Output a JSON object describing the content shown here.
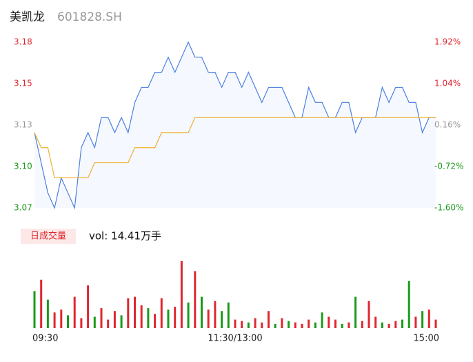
{
  "header": {
    "name": "美凯龙",
    "code": "601828.SH"
  },
  "chart_data": [
    {
      "type": "line",
      "x": [
        0,
        4,
        8,
        12,
        16,
        20,
        24,
        28,
        32,
        36,
        40,
        44,
        48,
        52,
        56,
        60,
        64,
        68,
        72,
        76,
        80,
        84,
        88,
        92,
        96,
        100,
        104,
        108,
        112,
        116,
        120,
        124,
        128,
        132,
        136,
        140,
        144,
        148,
        152,
        156,
        160,
        164,
        168,
        172,
        176,
        180,
        184,
        188,
        192,
        196,
        200,
        204,
        208,
        212,
        216,
        220,
        224,
        228,
        232,
        236,
        240
      ],
      "xlim": [
        0,
        240
      ],
      "xticks": [
        {
          "value": 0,
          "label": "09:30"
        },
        {
          "value": 120,
          "label": "11:30/13:00"
        },
        {
          "value": 240,
          "label": "15:00"
        }
      ],
      "series": [
        {
          "name": "price",
          "color": "#4a7fe0",
          "values": [
            3.12,
            3.1,
            3.08,
            3.07,
            3.09,
            3.08,
            3.07,
            3.11,
            3.12,
            3.11,
            3.13,
            3.13,
            3.12,
            3.13,
            3.12,
            3.14,
            3.15,
            3.15,
            3.16,
            3.16,
            3.17,
            3.16,
            3.17,
            3.18,
            3.17,
            3.17,
            3.16,
            3.16,
            3.15,
            3.16,
            3.16,
            3.15,
            3.16,
            3.15,
            3.14,
            3.15,
            3.15,
            3.15,
            3.14,
            3.13,
            3.13,
            3.15,
            3.14,
            3.14,
            3.13,
            3.13,
            3.14,
            3.14,
            3.12,
            3.13,
            3.13,
            3.13,
            3.15,
            3.14,
            3.15,
            3.15,
            3.14,
            3.14,
            3.12,
            3.13,
            3.13
          ]
        },
        {
          "name": "avg",
          "color": "#f0b030",
          "values": [
            3.12,
            3.11,
            3.11,
            3.09,
            3.09,
            3.09,
            3.09,
            3.09,
            3.09,
            3.1,
            3.1,
            3.1,
            3.1,
            3.1,
            3.1,
            3.11,
            3.11,
            3.11,
            3.11,
            3.12,
            3.12,
            3.12,
            3.12,
            3.12,
            3.13,
            3.13,
            3.13,
            3.13,
            3.13,
            3.13,
            3.13,
            3.13,
            3.13,
            3.13,
            3.13,
            3.13,
            3.13,
            3.13,
            3.13,
            3.13,
            3.13,
            3.13,
            3.13,
            3.13,
            3.13,
            3.13,
            3.13,
            3.13,
            3.13,
            3.13,
            3.13,
            3.13,
            3.13,
            3.13,
            3.13,
            3.13,
            3.13,
            3.13,
            3.13,
            3.13,
            3.13
          ]
        }
      ],
      "ylim": [
        3.07,
        3.18
      ],
      "yticks": [
        3.07,
        {
          "value": 3.0975,
          "label": "3.10"
        },
        {
          "value": 3.125,
          "label": "3.13"
        },
        {
          "value": 3.1525,
          "label": "3.15"
        },
        3.18
      ],
      "ytick_colors": [
        "#1a9a1a",
        "#1a9a1a",
        "#999999",
        "#e0262f",
        "#e0262f"
      ],
      "y2lim": [
        -1.6,
        1.92
      ],
      "y2ticks": [
        {
          "value": -1.6,
          "label": "-1.60%"
        },
        {
          "value": -0.72,
          "label": "-0.72%"
        },
        {
          "value": 0.16,
          "label": "0.16%"
        },
        {
          "value": 1.04,
          "label": "1.04%"
        },
        {
          "value": 1.92,
          "label": "1.92%"
        }
      ],
      "y2tick_colors": [
        "#1a9a1a",
        "#1a9a1a",
        "#999999",
        "#e0262f",
        "#e0262f"
      ]
    },
    {
      "type": "bar",
      "legend": "日成交量",
      "label": "vol: 14.41万手",
      "values": [
        2600,
        3400,
        2000,
        1100,
        1300,
        900,
        2200,
        700,
        3000,
        800,
        1400,
        600,
        1200,
        900,
        2100,
        2200,
        1600,
        1400,
        1000,
        2100,
        1300,
        1500,
        4700,
        1800,
        4000,
        2200,
        1300,
        1900,
        1200,
        1800,
        600,
        500,
        400,
        700,
        400,
        1200,
        300,
        700,
        500,
        400,
        300,
        600,
        400,
        1100,
        800,
        600,
        300,
        400,
        2200,
        500,
        1900,
        800,
        400,
        300,
        500,
        600,
        3300,
        800,
        1200,
        1300,
        600
      ],
      "colors": [
        "#1a9a1a",
        "#e0262f",
        "#1a9a1a",
        "#e0262f",
        "#e0262f",
        "#1a9a1a",
        "#e0262f",
        "#e0262f",
        "#e0262f",
        "#1a9a1a",
        "#e0262f",
        "#e0262f",
        "#e0262f",
        "#1a9a1a",
        "#e0262f",
        "#e0262f",
        "#e0262f",
        "#1a9a1a",
        "#e0262f",
        "#e0262f",
        "#1a9a1a",
        "#e0262f",
        "#e0262f",
        "#1a9a1a",
        "#e0262f",
        "#1a9a1a",
        "#e0262f",
        "#e0262f",
        "#1a9a1a",
        "#1a9a1a",
        "#e0262f",
        "#e0262f",
        "#1a9a1a",
        "#e0262f",
        "#e0262f",
        "#e0262f",
        "#1a9a1a",
        "#e0262f",
        "#1a9a1a",
        "#e0262f",
        "#e0262f",
        "#e0262f",
        "#1a9a1a",
        "#1a9a1a",
        "#e0262f",
        "#e0262f",
        "#1a9a1a",
        "#e0262f",
        "#1a9a1a",
        "#e0262f",
        "#e0262f",
        "#e0262f",
        "#1a9a1a",
        "#e0262f",
        "#e0262f",
        "#1a9a1a",
        "#1a9a1a",
        "#e0262f",
        "#1a9a1a",
        "#e0262f",
        "#e0262f"
      ]
    }
  ]
}
